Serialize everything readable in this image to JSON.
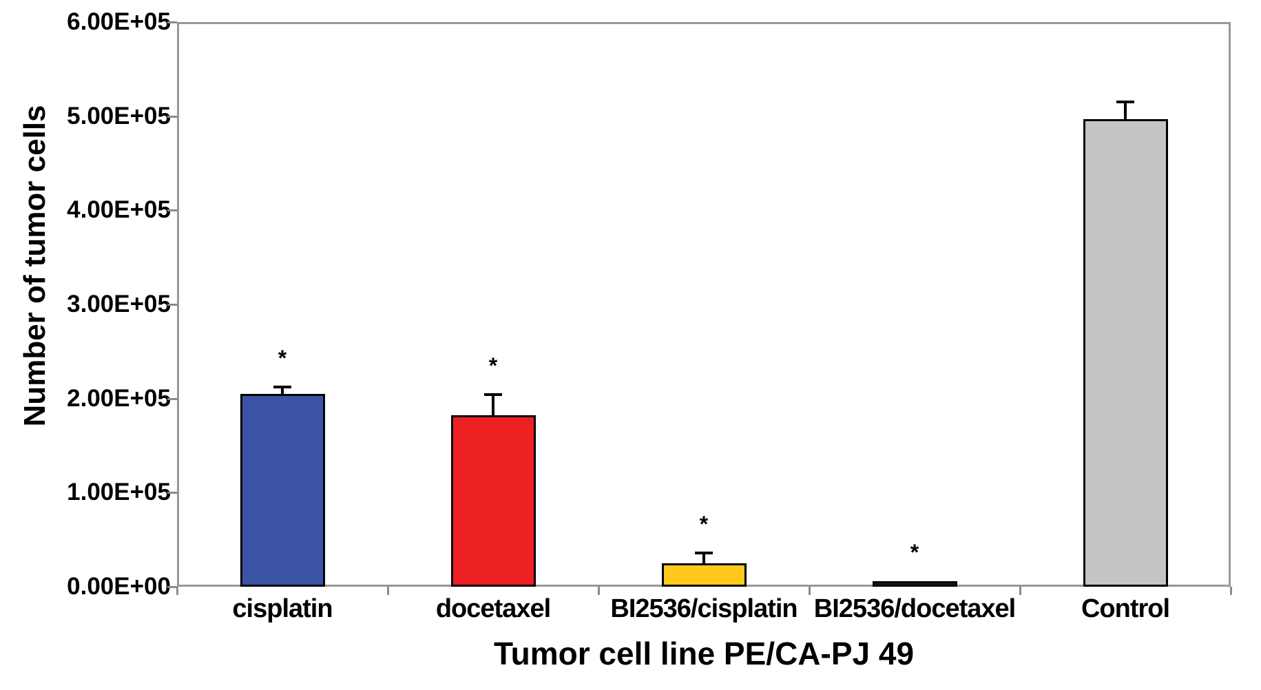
{
  "chart_data": {
    "type": "bar",
    "title": "",
    "xlabel": "Tumor cell line PE/CA-PJ 49",
    "ylabel": "Number of tumor cells",
    "ylim": [
      0,
      600000
    ],
    "ytick_step": 100000,
    "ytick_labels": [
      "0.00E+00",
      "1.00E+05",
      "2.00E+05",
      "3.00E+05",
      "4.00E+05",
      "5.00E+05",
      "6.00E+05"
    ],
    "categories": [
      "cisplatin",
      "docetaxel",
      "BI2536/cisplatin",
      "BI2536/docetaxel",
      "Control"
    ],
    "series": [
      {
        "name": "Number of tumor cells",
        "values": [
          205000,
          182000,
          25000,
          6000,
          497000
        ],
        "errors": [
          7000,
          22000,
          11000,
          0,
          18000
        ],
        "significance": [
          "*",
          "*",
          "*",
          "*",
          ""
        ]
      }
    ],
    "bar_colors": [
      "#3b54a5",
      "#ed2024",
      "#ffc91c",
      "#1a1a1a",
      "#c4c4c4"
    ],
    "bar_border_color": "#000000",
    "frame_color": "#979797",
    "grid": "off",
    "legend": "none"
  }
}
